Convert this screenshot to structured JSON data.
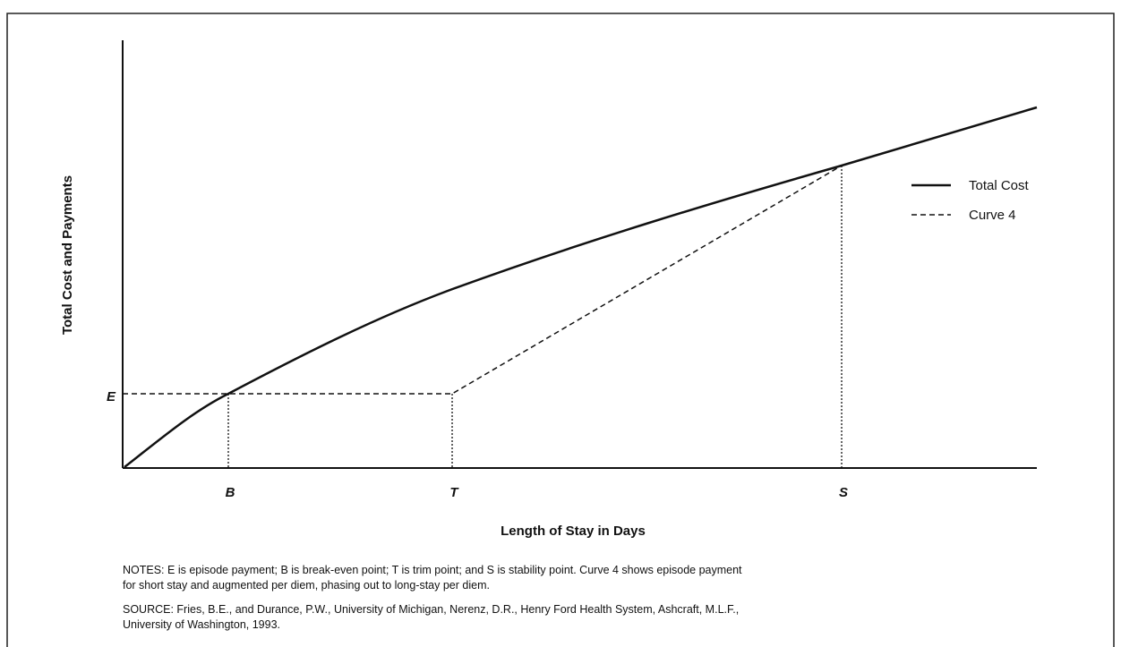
{
  "axis_labels": {
    "y": "Total Cost and Payments",
    "x": "Length of Stay in Days"
  },
  "axis_markers": {
    "E": "E",
    "B": "B",
    "T": "T",
    "S": "S"
  },
  "legend": [
    "Total Cost",
    "Curve 4"
  ],
  "notes": [
    "NOTES: E is episode payment; B is break-even point; T is trim point; and S is stability point. Curve 4 shows episode payment",
    "for short stay and augmented per diem, phasing out to long-stay per diem."
  ],
  "source": [
    "SOURCE: Fries, B.E., and Durance, P.W., University of Michigan, Nerenz, D.R., Henry Ford Health System, Ashcraft, M.L.F.,",
    "University of Washington, 1993."
  ]
}
